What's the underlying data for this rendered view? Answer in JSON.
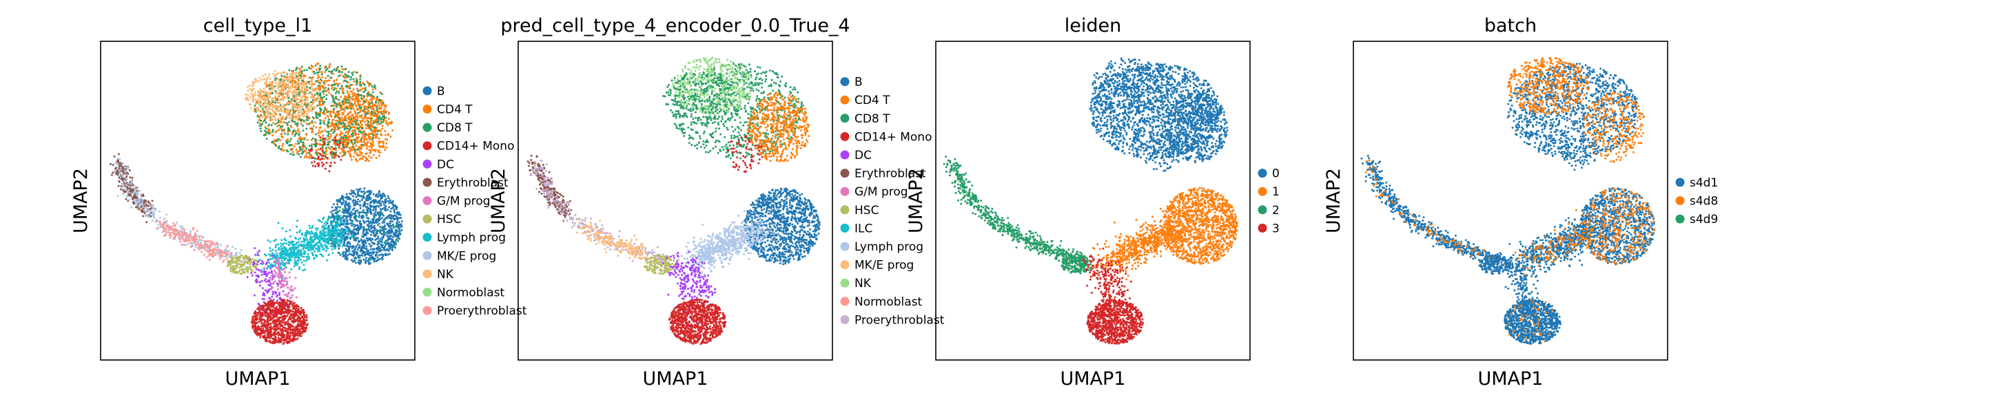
{
  "chart_data": [
    {
      "type": "scatter",
      "title": "cell_type_l1",
      "xlabel": "UMAP1",
      "ylabel": "UMAP2",
      "grid": false,
      "legend": "right",
      "series": [
        {
          "name": "B",
          "color": "#1f77b4"
        },
        {
          "name": "CD4 T",
          "color": "#ff7f0e"
        },
        {
          "name": "CD8 T",
          "color": "#279e68"
        },
        {
          "name": "CD14+ Mono",
          "color": "#d62728"
        },
        {
          "name": "DC",
          "color": "#aa40fc"
        },
        {
          "name": "Erythroblast",
          "color": "#8c564b"
        },
        {
          "name": "G/M prog",
          "color": "#e377c2"
        },
        {
          "name": "HSC",
          "color": "#b5bd61"
        },
        {
          "name": "Lymph prog",
          "color": "#17becf"
        },
        {
          "name": "MK/E prog",
          "color": "#aec7e8"
        },
        {
          "name": "NK",
          "color": "#ffbb78"
        },
        {
          "name": "Normoblast",
          "color": "#98df8a"
        },
        {
          "name": "Proerythroblast",
          "color": "#ff9896"
        }
      ]
    },
    {
      "type": "scatter",
      "title": "pred_cell_type_4_encoder_0.0_True_4",
      "xlabel": "UMAP1",
      "ylabel": "UMAP2",
      "grid": false,
      "legend": "right",
      "series": [
        {
          "name": "B",
          "color": "#1f77b4"
        },
        {
          "name": "CD4 T",
          "color": "#ff7f0e"
        },
        {
          "name": "CD8 T",
          "color": "#279e68"
        },
        {
          "name": "CD14+ Mono",
          "color": "#d62728"
        },
        {
          "name": "DC",
          "color": "#aa40fc"
        },
        {
          "name": "Erythroblast",
          "color": "#8c564b"
        },
        {
          "name": "G/M prog",
          "color": "#e377c2"
        },
        {
          "name": "HSC",
          "color": "#b5bd61"
        },
        {
          "name": "ILC",
          "color": "#17becf"
        },
        {
          "name": "Lymph prog",
          "color": "#aec7e8"
        },
        {
          "name": "MK/E prog",
          "color": "#ffbb78"
        },
        {
          "name": "NK",
          "color": "#98df8a"
        },
        {
          "name": "Normoblast",
          "color": "#ff9896"
        },
        {
          "name": "Proerythroblast",
          "color": "#c5b0d5"
        }
      ]
    },
    {
      "type": "scatter",
      "title": "leiden",
      "xlabel": "UMAP1",
      "ylabel": "UMAP2",
      "grid": false,
      "legend": "right",
      "series": [
        {
          "name": "0",
          "color": "#1f77b4"
        },
        {
          "name": "1",
          "color": "#ff7f0e"
        },
        {
          "name": "2",
          "color": "#279e68"
        },
        {
          "name": "3",
          "color": "#d62728"
        }
      ]
    },
    {
      "type": "scatter",
      "title": "batch",
      "xlabel": "UMAP1",
      "ylabel": "UMAP2",
      "grid": false,
      "legend": "right",
      "series": [
        {
          "name": "s4d1",
          "color": "#1f77b4"
        },
        {
          "name": "s4d8",
          "color": "#ff7f0e"
        },
        {
          "name": "s4d9",
          "color": "#279e68"
        }
      ]
    }
  ]
}
